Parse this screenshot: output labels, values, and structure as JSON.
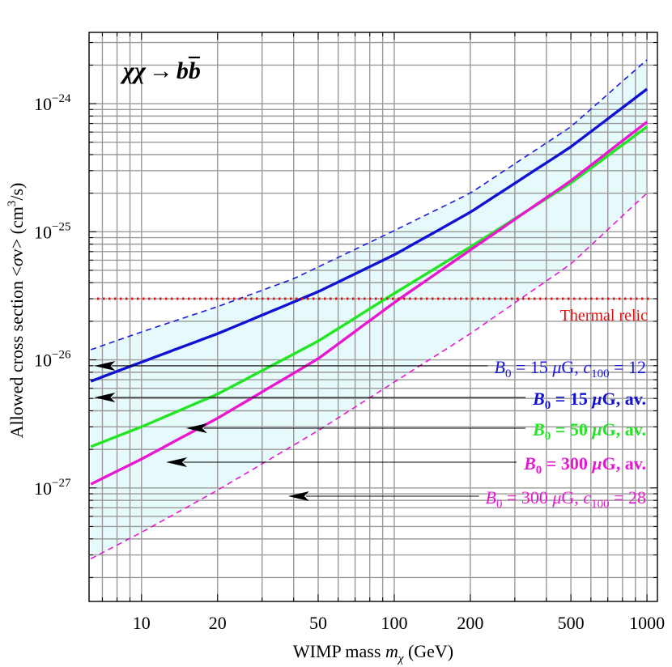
{
  "chart_data": {
    "type": "line",
    "title": "χχ → bb̄",
    "title_parts": {
      "lhs": "χχ",
      "arrow": "→",
      "b": "b",
      "bbar": "b"
    },
    "xlabel": "WIMP mass m_χ (GeV)",
    "xlabel_parts": {
      "pre": "WIMP mass ",
      "m": "m",
      "sub": "χ",
      "post": " (GeV)"
    },
    "ylabel": "Allowed cross section <σv> (cm³/s)",
    "ylabel_parts": {
      "pre": "Allowed cross section <",
      "sigma": "σ",
      "mid": "v> (cm",
      "sup": "3",
      "post": "/s)"
    },
    "x_scale": "log",
    "y_scale": "log",
    "xlim": [
      6.2,
      1100
    ],
    "ylim": [
      1.3e-28,
      3.6e-24
    ],
    "x_ticks": [
      {
        "v": 10,
        "label": "10"
      },
      {
        "v": 20,
        "label": "20"
      },
      {
        "v": 50,
        "label": "50"
      },
      {
        "v": 100,
        "label": "100"
      },
      {
        "v": 200,
        "label": "200"
      },
      {
        "v": 500,
        "label": "500"
      },
      {
        "v": 1000,
        "label": "1000"
      }
    ],
    "y_ticks": [
      {
        "v": 1e-27,
        "base": "10",
        "exp": "−27"
      },
      {
        "v": 1e-26,
        "base": "10",
        "exp": "−26"
      },
      {
        "v": 1e-25,
        "base": "10",
        "exp": "−25"
      },
      {
        "v": 1e-24,
        "base": "10",
        "exp": "−24"
      }
    ],
    "grid": true,
    "band": {
      "color": "#e6f9fb",
      "upper_series": "B0_15_c100_12",
      "lower_series": "B0_300_c100_28"
    },
    "series": [
      {
        "id": "B0_15_c100_12",
        "name": "B0 = 15 μG, c100 = 12",
        "color": "#1a1adb",
        "dashed": true,
        "width": 1.6,
        "x": [
          6.3,
          10,
          20,
          40,
          100,
          200,
          500,
          1000
        ],
        "y": [
          1.2e-26,
          1.65e-26,
          2.6e-26,
          4.3e-26,
          1.02e-25,
          2e-25,
          6.6e-25,
          2.2e-24
        ]
      },
      {
        "id": "B0_15_av",
        "name": "B0 = 15 μG, av.",
        "color": "#1212d2",
        "dashed": false,
        "width": 3.4,
        "x": [
          6.3,
          10,
          20,
          50,
          100,
          200,
          500,
          1000
        ],
        "y": [
          6.8e-27,
          9.6e-27,
          1.6e-26,
          3.4e-26,
          6.6e-26,
          1.42e-25,
          4.6e-25,
          1.3e-24
        ]
      },
      {
        "id": "B0_50_av",
        "name": "B0 = 50 μG, av.",
        "color": "#22e622",
        "dashed": false,
        "width": 3.4,
        "x": [
          6.3,
          10,
          20,
          50,
          100,
          200,
          500,
          1000
        ],
        "y": [
          2.1e-27,
          3e-27,
          5.4e-27,
          1.4e-26,
          3.3e-26,
          7.6e-26,
          2.4e-25,
          6.6e-25
        ]
      },
      {
        "id": "B0_300_av",
        "name": "B0 = 300 μG, av.",
        "color": "#e818d0",
        "dashed": false,
        "width": 3.4,
        "x": [
          6.3,
          10,
          20,
          50,
          100,
          200,
          500,
          1000
        ],
        "y": [
          1.07e-27,
          1.68e-27,
          3.5e-27,
          1.02e-26,
          2.8e-26,
          7.2e-26,
          2.5e-25,
          7.2e-25
        ]
      },
      {
        "id": "B0_300_c100_28",
        "name": "B0 = 300 μG, c100 = 28",
        "color": "#e818d0",
        "dashed": true,
        "width": 1.6,
        "x": [
          6.3,
          10,
          20,
          50,
          100,
          200,
          500,
          1000
        ],
        "y": [
          2.8e-28,
          4.5e-28,
          9.6e-28,
          2.8e-27,
          6.7e-27,
          1.6e-26,
          5.6e-26,
          2e-25
        ]
      }
    ],
    "thermal_relic": {
      "y": 3e-26,
      "color": "#e01010",
      "label": "Thermal relic"
    },
    "legend_entries": [
      {
        "series": "B0_15_c100_12",
        "color": "#1a1adb",
        "bold": false,
        "text_parts": {
          "b": "B",
          "b_sub": "0",
          "mid": " = 15 ",
          "mu": "μ",
          "mid2": "G,  ",
          "c": "c",
          "c_sub": "100",
          "tail": " = 12"
        },
        "arrow_x": 6.5,
        "arrow_y": 1.16e-26
      },
      {
        "series": "B0_15_av",
        "color": "#1212d2",
        "bold": true,
        "text_parts": {
          "b": "B",
          "b_sub": "0",
          "mid": " = 15 ",
          "mu": "μ",
          "mid2": "G,  av.",
          "c": "",
          "c_sub": "",
          "tail": ""
        },
        "arrow_x": 6.5,
        "arrow_y": 6.6e-27
      },
      {
        "series": "B0_50_av",
        "color": "#22e622",
        "bold": true,
        "text_parts": {
          "b": "B",
          "b_sub": "0",
          "mid": " = 50 ",
          "mu": "μ",
          "mid2": "G,  av.",
          "c": "",
          "c_sub": "",
          "tail": ""
        },
        "arrow_x": 15,
        "arrow_y": 4e-27
      },
      {
        "series": "B0_300_av",
        "color": "#e818d0",
        "bold": true,
        "text_parts": {
          "b": "B",
          "b_sub": "0",
          "mid": " = 300 ",
          "mu": "μ",
          "mid2": "G,  av.",
          "c": "",
          "c_sub": "",
          "tail": ""
        },
        "arrow_x": 12.5,
        "arrow_y": 2.25e-27
      },
      {
        "series": "B0_300_c100_28",
        "color": "#e818d0",
        "bold": false,
        "text_parts": {
          "b": "B",
          "b_sub": "0",
          "mid": " = 300 ",
          "mu": "μ",
          "mid2": "G,  ",
          "c": "c",
          "c_sub": "100",
          "tail": " = 28"
        },
        "arrow_x": 38,
        "arrow_y": 1.3e-27
      }
    ]
  }
}
